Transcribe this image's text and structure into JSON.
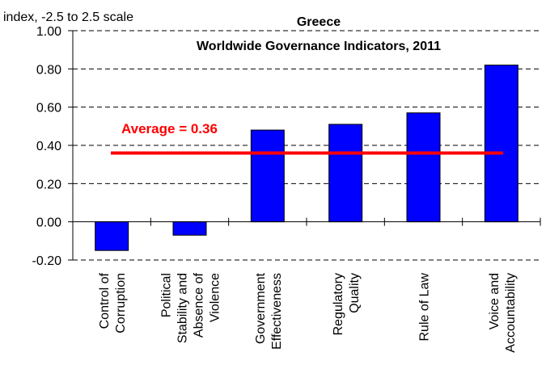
{
  "chart_data": {
    "type": "bar",
    "title": "Greece",
    "subtitle": "Worldwide Governance Indicators, 2011",
    "ylabel": "index, -2.5 to 2.5 scale",
    "xlabel": "",
    "ylim": [
      -0.2,
      1.0
    ],
    "yticks": [
      "1.00",
      "0.80",
      "0.60",
      "0.40",
      "0.20",
      "0.00",
      "-0.20"
    ],
    "grid": true,
    "categories": [
      [
        "Control of",
        "Corruption"
      ],
      [
        "Political",
        "Stability and",
        "Absence of",
        "Violence"
      ],
      [
        "Government",
        "Effectiveness"
      ],
      [
        "Regulatory",
        "Quality"
      ],
      [
        "Rule of Law"
      ],
      [
        "Voice and",
        "Accountability"
      ]
    ],
    "values": [
      -0.15,
      -0.07,
      0.48,
      0.51,
      0.57,
      0.82
    ],
    "bar_color": "#0000ff",
    "average": {
      "label": "Average = 0.36",
      "value": 0.36,
      "color": "#ff0000"
    }
  }
}
